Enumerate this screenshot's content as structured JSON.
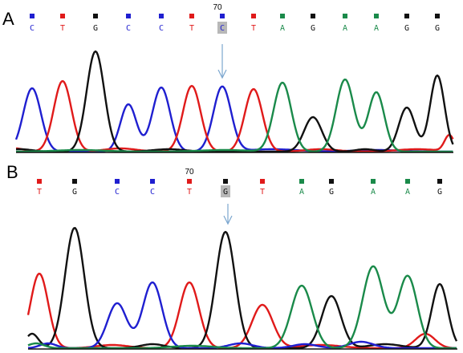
{
  "colors": {
    "A": "#1a8a4a",
    "C": "#1f1fd0",
    "G": "#111111",
    "T": "#e01a1a",
    "highlight": "#b8b8b8",
    "arrow": "#7ba6cf",
    "baseline": "#111111"
  },
  "panels": [
    {
      "label": "A",
      "position_label": "70",
      "bases": [
        "C",
        "T",
        "G",
        "C",
        "C",
        "T",
        "C",
        "T",
        "A",
        "G",
        "A",
        "A",
        "G",
        "G"
      ],
      "highlighted_index": 6
    },
    {
      "label": "B",
      "position_label": "70",
      "bases": [
        "T",
        "G",
        "C",
        "C",
        "T",
        "G",
        "T",
        "A",
        "G",
        "A",
        "A",
        "G"
      ],
      "highlighted_index": 5
    }
  ]
}
